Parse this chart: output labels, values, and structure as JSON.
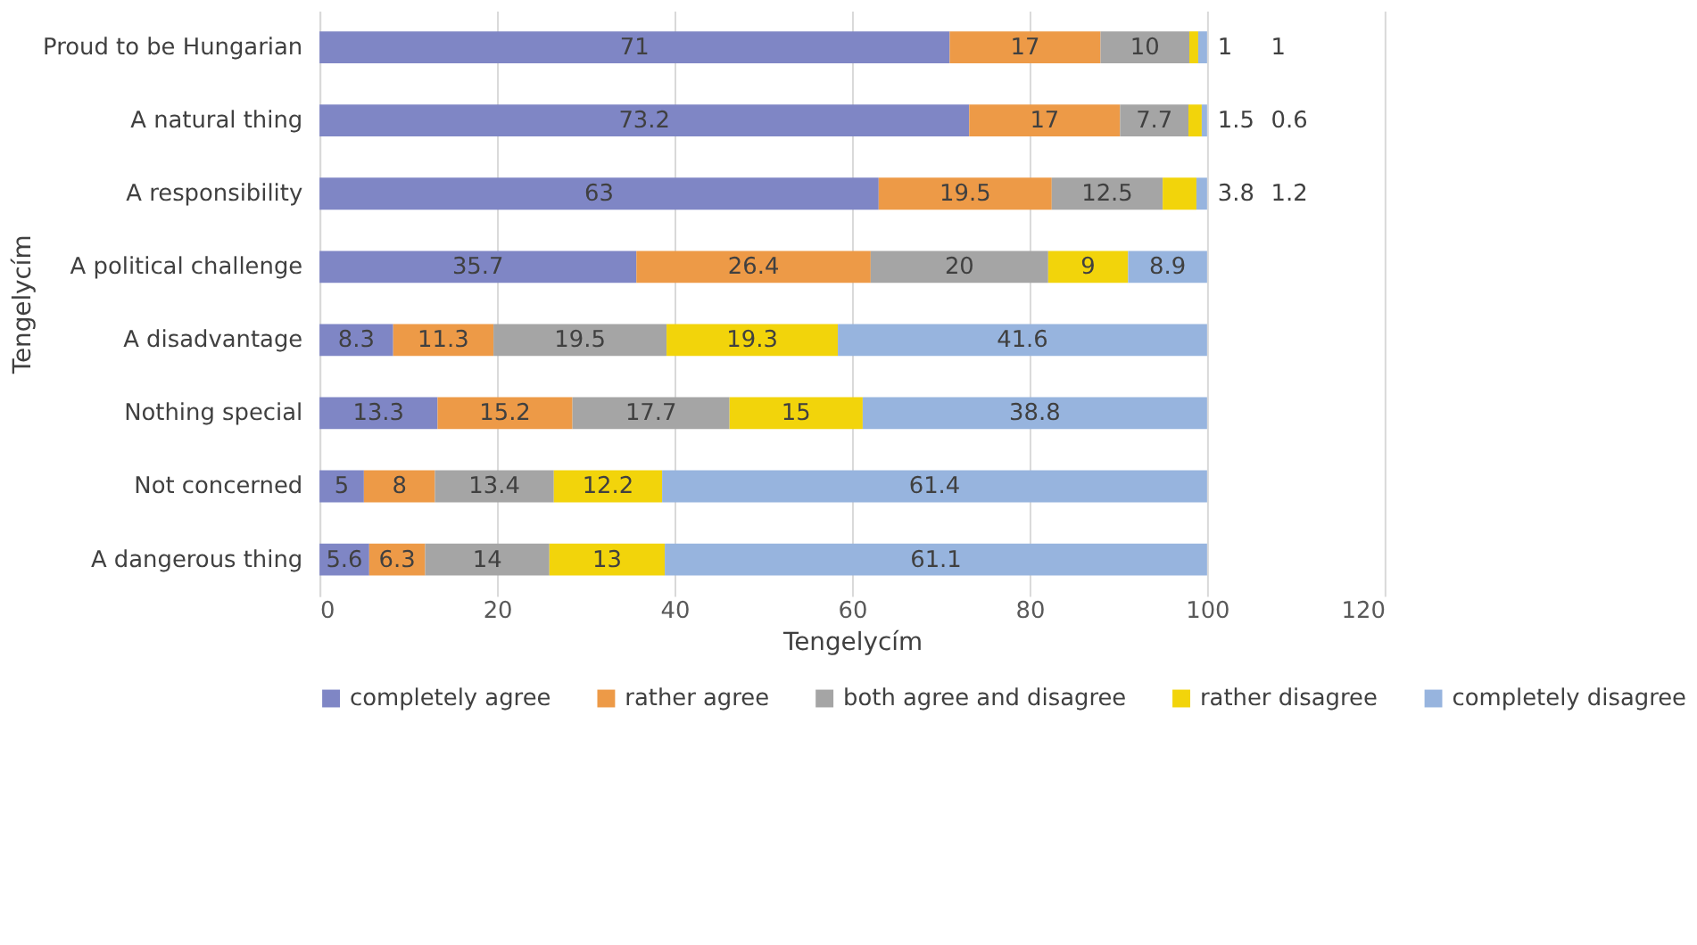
{
  "chart_data": {
    "type": "bar",
    "orientation": "horizontal",
    "stacked": true,
    "xlabel": "Tengelycím",
    "ylabel": "Tengelycím",
    "categories": [
      "Proud to be Hungarian",
      "A natural thing",
      "A responsibility",
      "A political challenge",
      "A disadvantage",
      "Nothing special",
      "Not concerned",
      "A dangerous thing"
    ],
    "series": [
      {
        "name": "completely agree",
        "color": "#7f86c5",
        "values": [
          71,
          73.2,
          63,
          35.7,
          8.3,
          13.3,
          5,
          5.6
        ]
      },
      {
        "name": "rather agree",
        "color": "#ed9a47",
        "values": [
          17,
          17,
          19.5,
          26.4,
          11.3,
          15.2,
          8,
          6.3
        ]
      },
      {
        "name": "both agree and disagree",
        "color": "#a5a5a5",
        "values": [
          10,
          7.7,
          12.5,
          20,
          19.5,
          17.7,
          13.4,
          14
        ]
      },
      {
        "name": "rather disagree",
        "color": "#f2d40b",
        "values": [
          1,
          1.5,
          3.8,
          9,
          19.3,
          15,
          12.2,
          13
        ]
      },
      {
        "name": "completely disagree",
        "color": "#97b4de",
        "values": [
          1,
          0.6,
          1.2,
          8.9,
          41.6,
          38.8,
          61.4,
          61.1
        ]
      }
    ],
    "xlim": [
      0,
      120
    ],
    "xticks": [
      0,
      20,
      40,
      60,
      80,
      100,
      120
    ],
    "grid": "x",
    "legend": "bottom",
    "data_labels": true
  }
}
